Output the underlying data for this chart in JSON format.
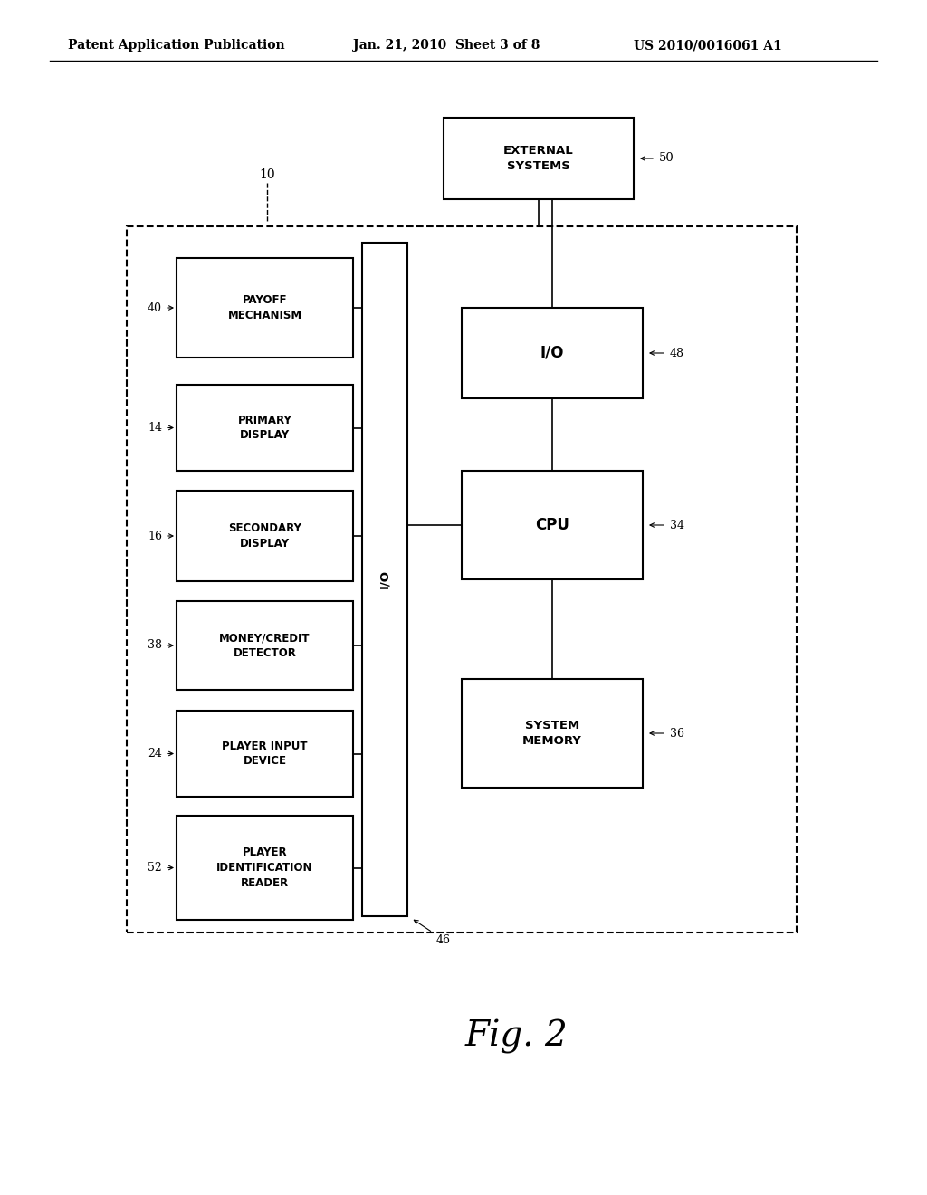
{
  "bg_color": "#ffffff",
  "header_left": "Patent Application Publication",
  "header_mid": "Jan. 21, 2010  Sheet 3 of 8",
  "header_right": "US 2010/0016061 A1",
  "fig_label": "Fig. 2",
  "outer_box_label": "10",
  "external_systems_label": "EXTERNAL\nSYSTEMS",
  "external_systems_num": "50",
  "io_bus_label": "I/O",
  "io_bus_num": "46",
  "right_io_label": "I/O",
  "right_io_num": "48",
  "cpu_label": "CPU",
  "cpu_num": "34",
  "sys_mem_label": "SYSTEM\nMEMORY",
  "sys_mem_num": "36",
  "left_boxes": [
    {
      "label": "PAYOFF\nMECHANISM",
      "num": "40"
    },
    {
      "label": "PRIMARY\nDISPLAY",
      "num": "14"
    },
    {
      "label": "SECONDARY\nDISPLAY",
      "num": "16"
    },
    {
      "label": "MONEY/CREDIT\nDETECTOR",
      "num": "38"
    },
    {
      "label": "PLAYER INPUT\nDEVICE",
      "num": "24"
    },
    {
      "label": "PLAYER\nIDENTIFICATION\nREADER",
      "num": "52"
    }
  ]
}
